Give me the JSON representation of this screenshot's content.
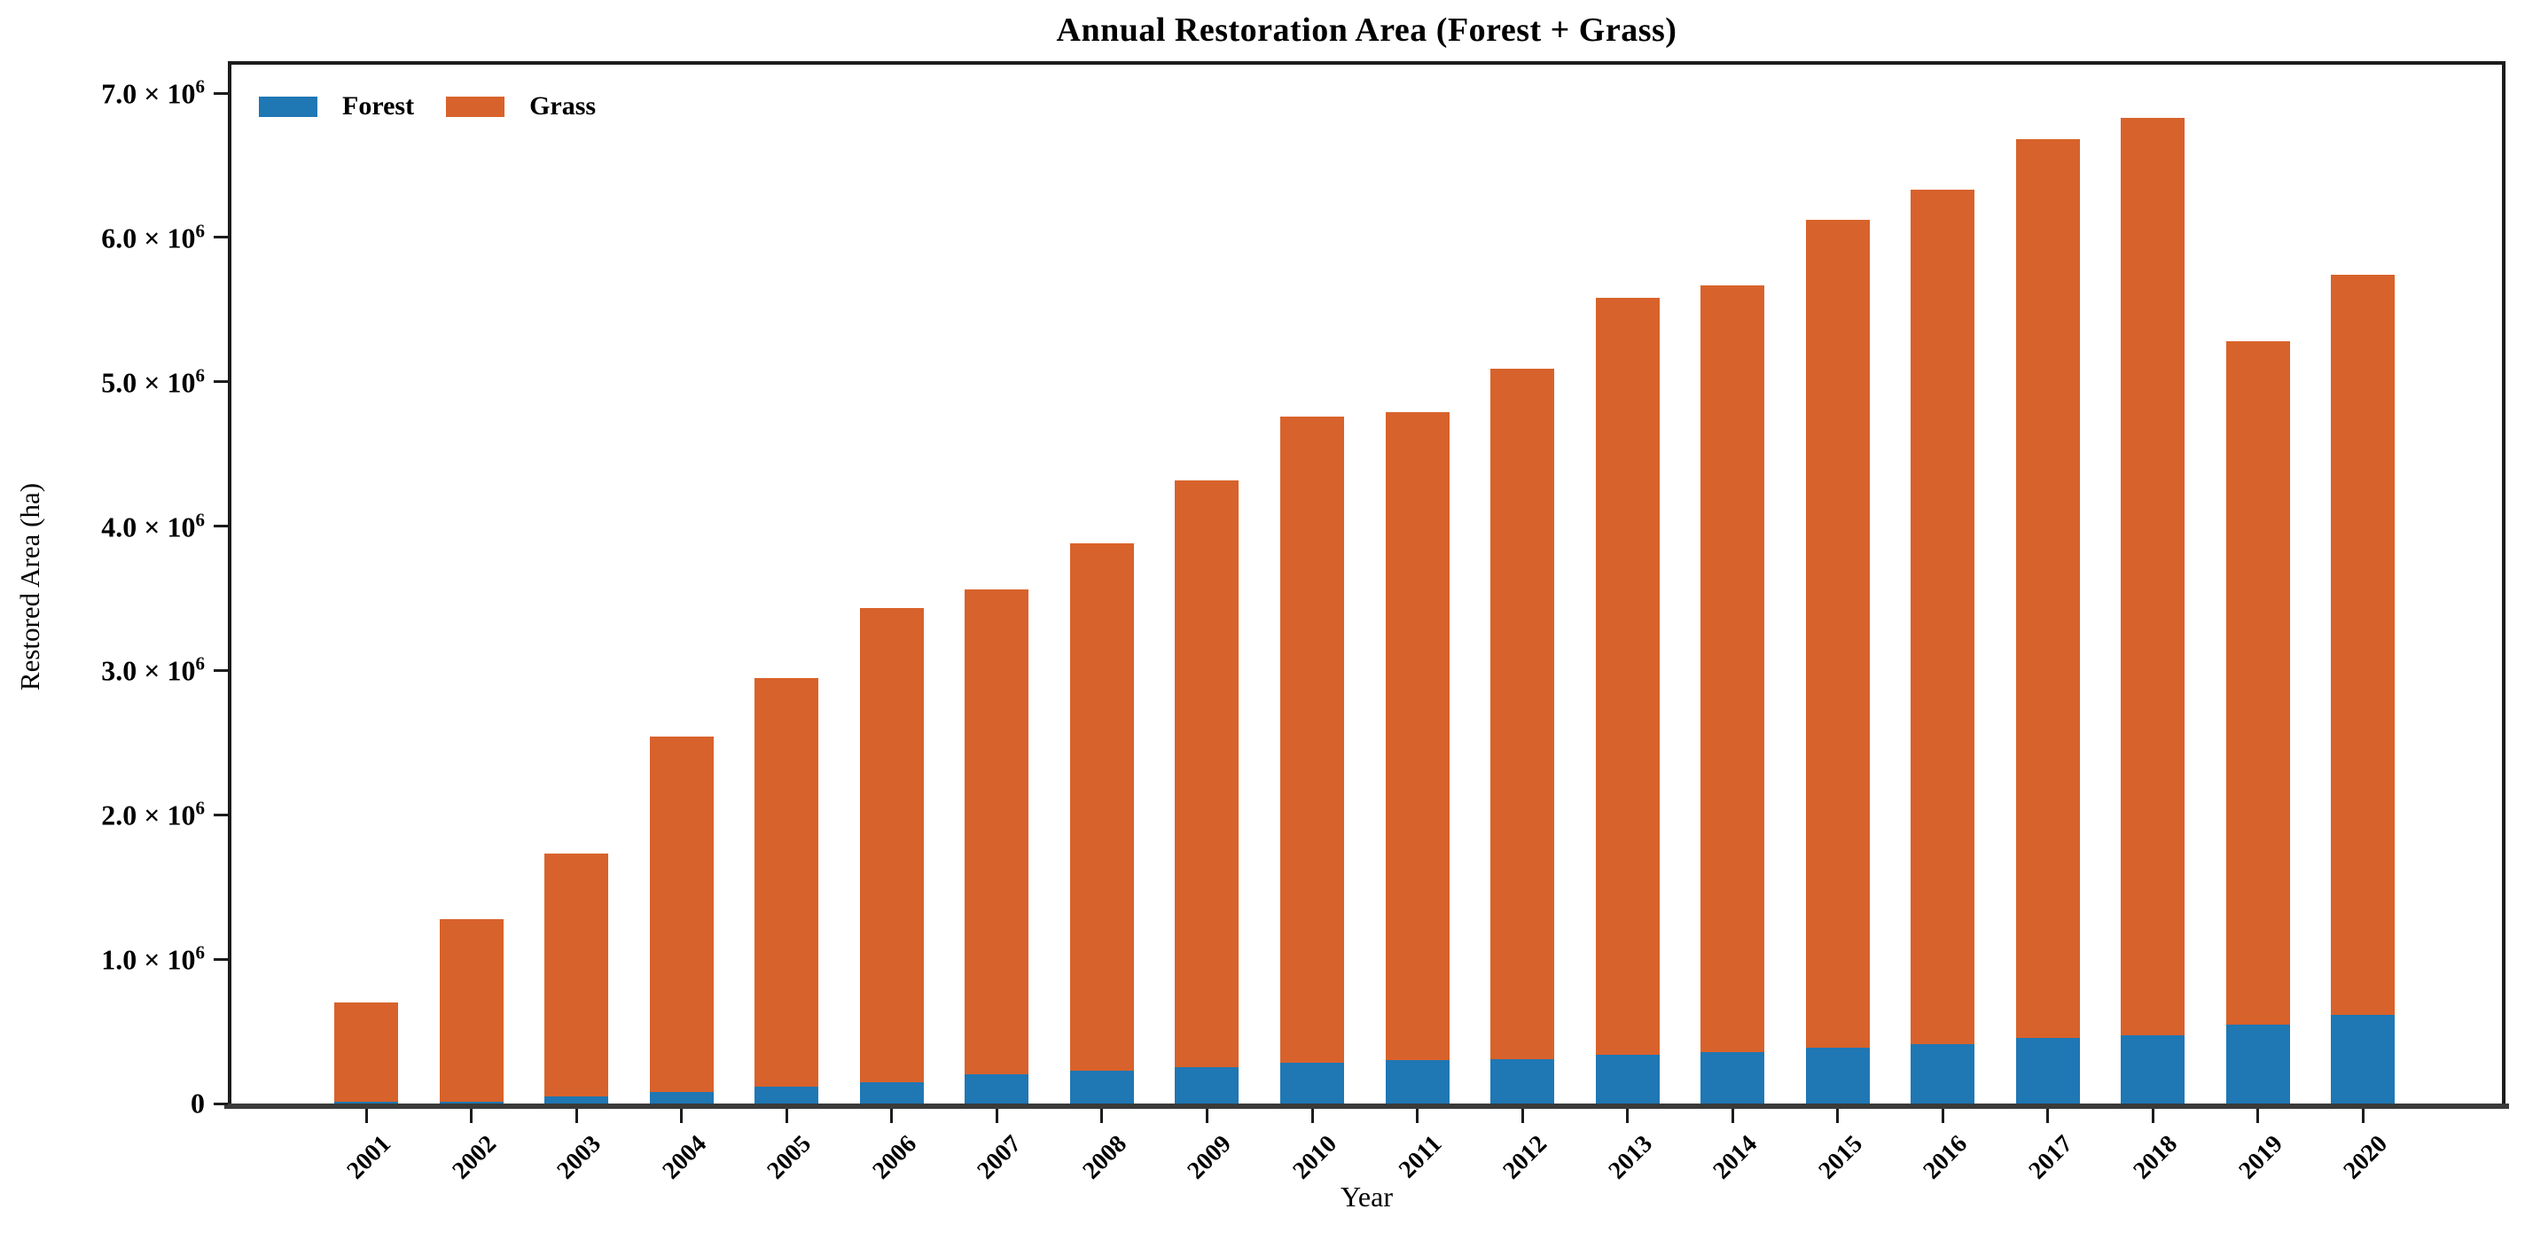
{
  "title": "Annual Restoration Area (Forest + Grass)",
  "colors": {
    "forest": "#1f77b4",
    "grass": "#d8622b",
    "spine": "#1c1c1c",
    "baseline": "#3a3a3a"
  },
  "chart_data": {
    "type": "bar",
    "stacked": true,
    "title": "Annual Restoration Area (Forest + Grass)",
    "xlabel": "Year",
    "ylabel": "Restored Area (ha)",
    "ylim": [
      0,
      7000000
    ],
    "grid": false,
    "legend_position": "upper left",
    "categories": [
      "2001",
      "2002",
      "2003",
      "2004",
      "2005",
      "2006",
      "2007",
      "2008",
      "2009",
      "2010",
      "2011",
      "2012",
      "2013",
      "2014",
      "2015",
      "2016",
      "2017",
      "2018",
      "2019",
      "2020"
    ],
    "series": [
      {
        "name": "Forest",
        "color": "#1f77b4",
        "values": [
          10000,
          15000,
          50000,
          80000,
          115000,
          150000,
          200000,
          225000,
          255000,
          280000,
          300000,
          310000,
          340000,
          355000,
          385000,
          410000,
          455000,
          475000,
          545000,
          615000
        ]
      },
      {
        "name": "Grass",
        "color": "#d8622b",
        "values": [
          690000,
          1265000,
          1680000,
          2460000,
          2835000,
          3280000,
          3360000,
          3655000,
          4065000,
          4480000,
          4490000,
          4780000,
          5240000,
          5315000,
          5735000,
          5920000,
          6225000,
          6355000,
          4735000,
          5125000
        ]
      }
    ],
    "totals": [
      700000,
      1280000,
      1730000,
      2540000,
      2950000,
      3430000,
      3560000,
      3880000,
      4320000,
      4760000,
      4790000,
      5090000,
      5580000,
      5670000,
      6120000,
      6330000,
      6680000,
      6830000,
      5280000,
      5740000
    ],
    "y_ticks": [
      {
        "m": "0",
        "e": ""
      },
      {
        "m": "1.0 × 10",
        "e": "6"
      },
      {
        "m": "2.0 × 10",
        "e": "6"
      },
      {
        "m": "3.0 × 10",
        "e": "6"
      },
      {
        "m": "4.0 × 10",
        "e": "6"
      },
      {
        "m": "5.0 × 10",
        "e": "6"
      },
      {
        "m": "6.0 × 10",
        "e": "6"
      },
      {
        "m": "7.0 × 10",
        "e": "6"
      }
    ]
  }
}
